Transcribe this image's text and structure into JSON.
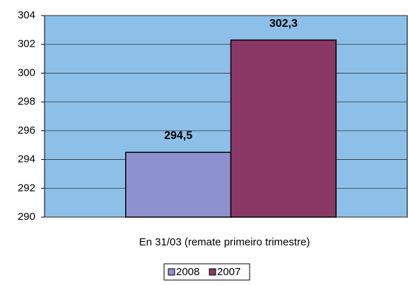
{
  "chart_data": {
    "type": "bar",
    "categories": [
      "En 31/03 (remate primeiro trimestre)"
    ],
    "series": [
      {
        "name": "2008",
        "color": "#8e93cf",
        "values": [
          294.5
        ],
        "value_labels": [
          "294,5"
        ]
      },
      {
        "name": "2007",
        "color": "#8b3866",
        "values": [
          302.3
        ],
        "value_labels": [
          "302,3"
        ]
      }
    ],
    "ylim": [
      290,
      304
    ],
    "yticks": [
      290,
      292,
      294,
      296,
      298,
      300,
      302,
      304
    ],
    "grid": true,
    "plot_color": "#8dc0e8",
    "legend": "bottom"
  }
}
